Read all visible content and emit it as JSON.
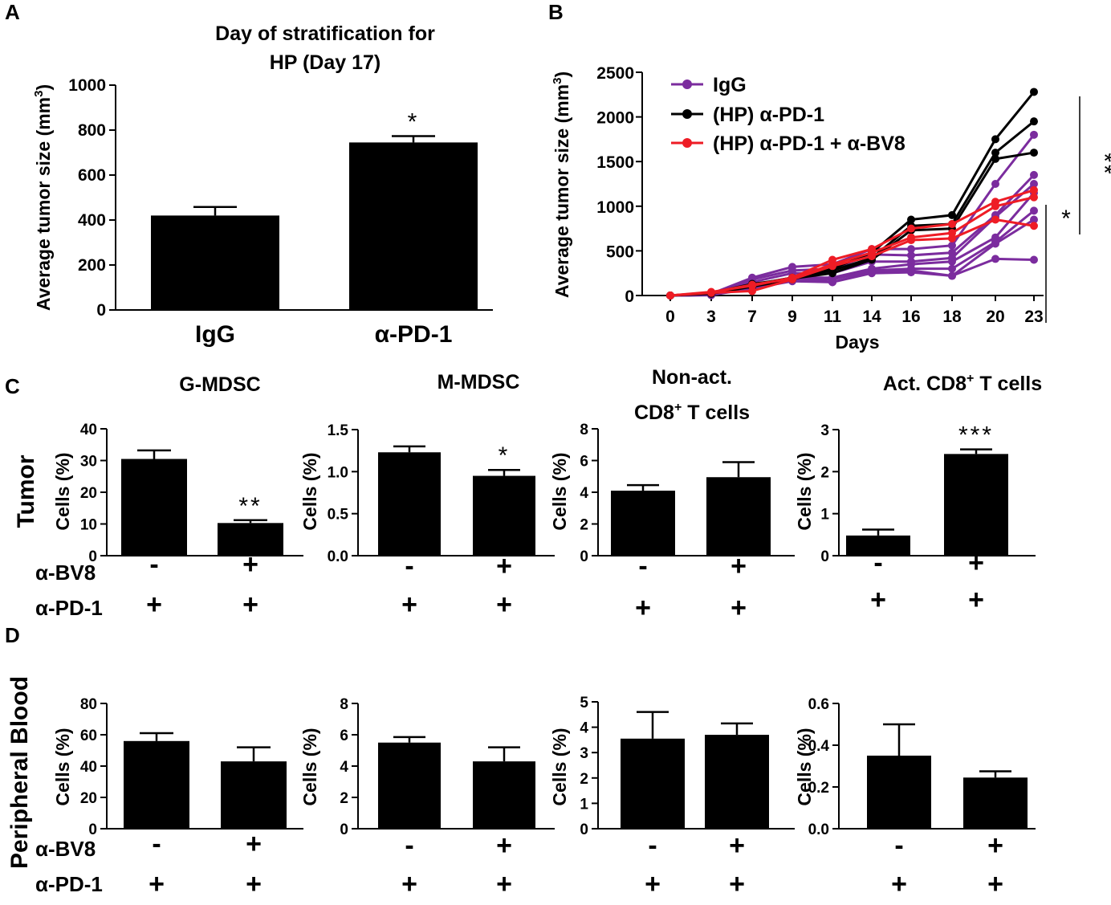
{
  "panel_labels": {
    "a": "A",
    "b": "B",
    "c": "C",
    "d": "D"
  },
  "row_labels": {
    "tumor": "Tumor",
    "blood": "Peripheral Blood"
  },
  "treatment_labels": {
    "bv8": "α-BV8",
    "pd1": "α-PD-1"
  },
  "signs": {
    "minus": "-",
    "plus": "+"
  },
  "panel_c_titles": {
    "g_mdsc": "G-MDSC",
    "m_mdsc": "M-MDSC",
    "nonact_line1": "Non-act.",
    "nonact_line2": "CD8",
    "nonact_line2_sup": "+",
    "nonact_line2_rest": " T cells",
    "act_pre": "Act. CD8",
    "act_sup": "+",
    "act_rest": " T cells"
  },
  "colors": {
    "igg": "#7B2C9E",
    "pd1": "#000000",
    "pd1_bv8": "#EE1C25",
    "bar": "#000000"
  },
  "chart_data": [
    {
      "id": "A",
      "type": "bar",
      "title_line1": "Day of stratification for",
      "title_line2": "HP (Day 17)",
      "ylabel": "Average tumor size (mm",
      "ylabel_sup": "3",
      "ylabel_close": ")",
      "categories": [
        "IgG",
        "α-PD-1"
      ],
      "values": [
        420,
        745
      ],
      "errors": [
        38,
        28
      ],
      "annotations": [
        "",
        "*"
      ],
      "ylim": [
        0,
        1000
      ],
      "yticks": [
        0,
        200,
        400,
        600,
        800,
        1000
      ],
      "ytick_labels": [
        "0",
        "200",
        "400",
        "600",
        "800",
        "1000"
      ]
    },
    {
      "id": "B",
      "type": "line",
      "xlabel": "Days",
      "ylabel": "Average tumor size (mm",
      "ylabel_sup": "3",
      "ylabel_close": ")",
      "x": [
        0,
        3,
        7,
        9,
        11,
        14,
        16,
        18,
        20,
        23
      ],
      "xtick_labels": [
        "0",
        "3",
        "7",
        "9",
        "11",
        "14",
        "16",
        "18",
        "20",
        "23"
      ],
      "ylim": [
        0,
        2500
      ],
      "yticks": [
        0,
        500,
        1000,
        1500,
        2000,
        2500
      ],
      "ytick_labels": [
        "0",
        "500",
        "1000",
        "1500",
        "2000",
        "2500"
      ],
      "legend": [
        {
          "label": "IgG",
          "group": "igg"
        },
        {
          "label": "(HP) α-PD-1",
          "group": "pd1"
        },
        {
          "label": "(HP) α-PD-1 + α-BV8",
          "group": "pd1_bv8"
        }
      ],
      "significance": [
        {
          "label": "*",
          "from_group": "pd1_bv8",
          "to_group": "igg"
        },
        {
          "label": "**",
          "from_group": "pd1",
          "to_group": "igg"
        }
      ],
      "series": [
        {
          "group": "igg",
          "name": "IgG 1",
          "values": [
            0,
            20,
            200,
            320,
            350,
            520,
            520,
            560,
            1250,
            1800
          ]
        },
        {
          "group": "igg",
          "name": "IgG 2",
          "values": [
            0,
            10,
            180,
            280,
            300,
            460,
            450,
            480,
            900,
            1350
          ]
        },
        {
          "group": "igg",
          "name": "IgG 3",
          "values": [
            0,
            15,
            150,
            250,
            250,
            380,
            380,
            420,
            880,
            1250
          ]
        },
        {
          "group": "igg",
          "name": "IgG 4",
          "values": [
            0,
            5,
            120,
            200,
            200,
            300,
            350,
            380,
            650,
            1150
          ]
        },
        {
          "group": "igg",
          "name": "IgG 5",
          "values": [
            0,
            10,
            100,
            180,
            180,
            280,
            300,
            300,
            600,
            950
          ]
        },
        {
          "group": "igg",
          "name": "IgG 6",
          "values": [
            0,
            5,
            90,
            170,
            150,
            260,
            280,
            220,
            580,
            850
          ]
        },
        {
          "group": "igg",
          "name": "IgG 7",
          "values": [
            0,
            5,
            80,
            160,
            150,
            250,
            260,
            220,
            410,
            400
          ]
        },
        {
          "group": "pd1",
          "name": "α-PD-1 1",
          "values": [
            0,
            20,
            100,
            180,
            300,
            480,
            850,
            900,
            1750,
            2280
          ]
        },
        {
          "group": "pd1",
          "name": "α-PD-1 2",
          "values": [
            0,
            25,
            120,
            200,
            280,
            420,
            780,
            800,
            1600,
            1950
          ]
        },
        {
          "group": "pd1",
          "name": "α-PD-1 3",
          "values": [
            0,
            30,
            130,
            190,
            250,
            400,
            730,
            750,
            1530,
            1600
          ]
        },
        {
          "group": "pd1_bv8",
          "name": "α-PD-1 + α-BV8 1",
          "values": [
            0,
            40,
            110,
            200,
            400,
            520,
            750,
            800,
            1050,
            1180
          ]
        },
        {
          "group": "pd1_bv8",
          "name": "α-PD-1 + α-BV8 2",
          "values": [
            0,
            35,
            120,
            190,
            350,
            480,
            650,
            700,
            1000,
            1100
          ]
        },
        {
          "group": "pd1_bv8",
          "name": "α-PD-1 + α-BV8 3",
          "values": [
            0,
            30,
            50,
            180,
            330,
            440,
            620,
            640,
            850,
            780
          ]
        }
      ]
    },
    {
      "id": "C1",
      "type": "bar",
      "ylabel": "Cells (%)",
      "values": [
        30.5,
        10.3
      ],
      "errors": [
        2.7,
        0.9
      ],
      "annotations": [
        "",
        "**"
      ],
      "ylim": [
        0,
        40
      ],
      "yticks": [
        0,
        10,
        20,
        30,
        40
      ],
      "ytick_labels": [
        "0",
        "10",
        "20",
        "30",
        "40"
      ],
      "bv8": [
        "-",
        "+"
      ],
      "pd1": [
        "+",
        "+"
      ]
    },
    {
      "id": "C2",
      "type": "bar",
      "ylabel": "Cells (%)",
      "values": [
        1.23,
        0.95
      ],
      "errors": [
        0.07,
        0.07
      ],
      "annotations": [
        "",
        "*"
      ],
      "ylim": [
        0,
        1.5
      ],
      "yticks": [
        0,
        0.5,
        1.0,
        1.5
      ],
      "ytick_labels": [
        "0.0",
        "0.5",
        "1.0",
        "1.5"
      ],
      "bv8": [
        "-",
        "+"
      ],
      "pd1": [
        "+",
        "+"
      ]
    },
    {
      "id": "C3",
      "type": "bar",
      "ylabel": "Cells (%)",
      "values": [
        4.1,
        4.95
      ],
      "errors": [
        0.35,
        0.95
      ],
      "annotations": [
        "",
        ""
      ],
      "ylim": [
        0,
        8
      ],
      "yticks": [
        0,
        2,
        4,
        6,
        8
      ],
      "ytick_labels": [
        "0",
        "2",
        "4",
        "6",
        "8"
      ],
      "bv8": [
        "-",
        "+"
      ],
      "pd1": [
        "+",
        "+"
      ]
    },
    {
      "id": "C4",
      "type": "bar",
      "ylabel": "Cells (%)",
      "values": [
        0.48,
        2.42
      ],
      "errors": [
        0.14,
        0.11
      ],
      "annotations": [
        "",
        "***"
      ],
      "ylim": [
        0,
        3
      ],
      "yticks": [
        0,
        1,
        2,
        3
      ],
      "ytick_labels": [
        "0",
        "1",
        "2",
        "3"
      ],
      "bv8": [
        "-",
        "+"
      ],
      "pd1": [
        "+",
        "+"
      ]
    },
    {
      "id": "D1",
      "type": "bar",
      "ylabel": "Cells (%)",
      "values": [
        56,
        43
      ],
      "errors": [
        5,
        9
      ],
      "annotations": [
        "",
        ""
      ],
      "ylim": [
        0,
        80
      ],
      "yticks": [
        0,
        20,
        40,
        60,
        80
      ],
      "ytick_labels": [
        "0",
        "20",
        "40",
        "60",
        "80"
      ],
      "bv8": [
        "-",
        "+"
      ],
      "pd1": [
        "+",
        "+"
      ]
    },
    {
      "id": "D2",
      "type": "bar",
      "ylabel": "Cells (%)",
      "values": [
        5.5,
        4.3
      ],
      "errors": [
        0.35,
        0.9
      ],
      "annotations": [
        "",
        ""
      ],
      "ylim": [
        0,
        8
      ],
      "yticks": [
        0,
        2,
        4,
        6,
        8
      ],
      "ytick_labels": [
        "0",
        "2",
        "4",
        "6",
        "8"
      ],
      "bv8": [
        "-",
        "+"
      ],
      "pd1": [
        "+",
        "+"
      ]
    },
    {
      "id": "D3",
      "type": "bar",
      "ylabel": "Cells (%)",
      "values": [
        3.55,
        3.7
      ],
      "errors": [
        1.05,
        0.45
      ],
      "annotations": [
        "",
        ""
      ],
      "ylim": [
        0,
        5
      ],
      "yticks": [
        0,
        1,
        2,
        3,
        4,
        5
      ],
      "ytick_labels": [
        "0",
        "1",
        "2",
        "3",
        "4",
        "5"
      ],
      "bv8": [
        "-",
        "+"
      ],
      "pd1": [
        "+",
        "+"
      ]
    },
    {
      "id": "D4",
      "type": "bar",
      "ylabel": "Cells (%)",
      "values": [
        0.35,
        0.245
      ],
      "errors": [
        0.15,
        0.03
      ],
      "annotations": [
        "",
        ""
      ],
      "ylim": [
        0,
        0.6
      ],
      "yticks": [
        0,
        0.2,
        0.4,
        0.6
      ],
      "ytick_labels": [
        "0.0",
        "0.2",
        "0.4",
        "0.6"
      ],
      "bv8": [
        "-",
        "+"
      ],
      "pd1": [
        "+",
        "+"
      ]
    }
  ]
}
